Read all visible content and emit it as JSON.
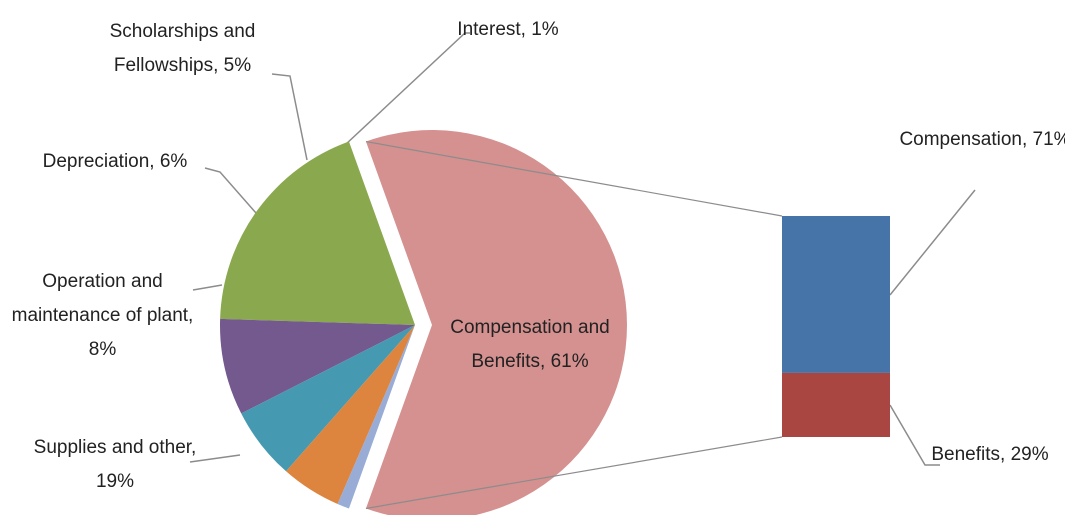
{
  "chart_data": {
    "type": "bar-of-pie",
    "values": [
      61,
      19,
      8,
      6,
      5,
      1
    ],
    "value_labels": [
      "Compensation and Benefits, 61%",
      "Supplies and other, 19%",
      "Operation and maintenance of plant, 8%",
      "Depreciation, 6%",
      "Scholarships and Fellowships, 5%",
      "Interest, 1%"
    ],
    "colors": [
      "#d49190",
      "#8aa94e",
      "#74598e",
      "#4599b0",
      "#dd843f",
      "#98acd6"
    ],
    "breakdown": {
      "values": [
        71,
        29
      ],
      "value_labels": [
        "Compensation, 71%",
        "Benefits, 29%"
      ],
      "colors": [
        "#4673a8",
        "#a94642"
      ]
    }
  }
}
